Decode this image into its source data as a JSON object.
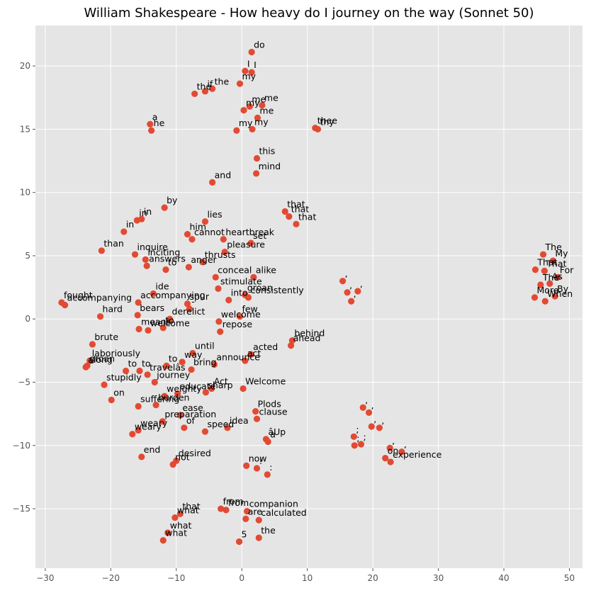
{
  "chart_data": {
    "type": "scatter",
    "title": "William Shakespeare - How heavy do I journey on the way (Sonnet 50)",
    "xlabel": "",
    "ylabel": "",
    "xlim": [
      -31.5,
      52
    ],
    "ylim": [
      -19.7,
      23.2
    ],
    "xticks": [
      -30,
      -20,
      -10,
      0,
      10,
      20,
      30,
      40,
      50
    ],
    "yticks": [
      -15,
      -10,
      -5,
      0,
      5,
      10,
      15,
      20
    ],
    "grid": true,
    "marker_color": "#E24A33",
    "background": "#E5E5E5",
    "grid_color": "#FFFFFF",
    "points": [
      {
        "label": "do",
        "x": 1.5,
        "y": 21.1
      },
      {
        "label": "I",
        "x": 0.5,
        "y": 19.6
      },
      {
        "label": "I",
        "x": 1.5,
        "y": 19.5
      },
      {
        "label": "the",
        "x": -4.5,
        "y": 18.2
      },
      {
        "label": "if",
        "x": -5.6,
        "y": 18.0
      },
      {
        "label": "the",
        "x": -7.2,
        "y": 17.8
      },
      {
        "label": "my",
        "x": -0.3,
        "y": 18.6
      },
      {
        "label": "me",
        "x": 1.2,
        "y": 16.8
      },
      {
        "label": "me",
        "x": 3.1,
        "y": 16.9
      },
      {
        "label": "my",
        "x": 0.3,
        "y": 16.5
      },
      {
        "label": "me",
        "x": 2.4,
        "y": 15.9
      },
      {
        "label": "my",
        "x": 1.6,
        "y": 15.0
      },
      {
        "label": "my",
        "x": -0.8,
        "y": 14.9
      },
      {
        "label": "thee",
        "x": 11.2,
        "y": 15.1
      },
      {
        "label": "thy",
        "x": 11.6,
        "y": 15.0
      },
      {
        "label": "a",
        "x": -14.0,
        "y": 15.4
      },
      {
        "label": "he",
        "x": -13.8,
        "y": 14.9
      },
      {
        "label": "this",
        "x": 2.3,
        "y": 12.7
      },
      {
        "label": "mind",
        "x": 2.2,
        "y": 11.5
      },
      {
        "label": "and",
        "x": -4.5,
        "y": 10.8
      },
      {
        "label": "by",
        "x": -11.8,
        "y": 8.8
      },
      {
        "label": "in",
        "x": -16.0,
        "y": 7.8
      },
      {
        "label": "in",
        "x": -15.3,
        "y": 7.9
      },
      {
        "label": "lies",
        "x": -5.6,
        "y": 7.7
      },
      {
        "label": "that",
        "x": 6.6,
        "y": 8.5
      },
      {
        "label": "that",
        "x": 7.2,
        "y": 8.1
      },
      {
        "label": "that",
        "x": 8.3,
        "y": 7.5
      },
      {
        "label": "him",
        "x": -8.3,
        "y": 6.7
      },
      {
        "label": "cannot",
        "x": -7.6,
        "y": 6.3
      },
      {
        "label": "in",
        "x": -18.0,
        "y": 6.9
      },
      {
        "label": "heartbreak",
        "x": -2.8,
        "y": 6.3
      },
      {
        "label": "than",
        "x": -21.4,
        "y": 5.4
      },
      {
        "label": "inquire",
        "x": -16.3,
        "y": 5.1
      },
      {
        "label": "pleasure",
        "x": -2.6,
        "y": 5.3
      },
      {
        "label": "set",
        "x": 1.4,
        "y": 6.0
      },
      {
        "label": "thrusts",
        "x": -6.0,
        "y": 4.5
      },
      {
        "label": "inciting",
        "x": -14.7,
        "y": 4.7
      },
      {
        "label": "answers",
        "x": -14.5,
        "y": 4.2
      },
      {
        "label": "to",
        "x": -11.6,
        "y": 3.9
      },
      {
        "label": "anger",
        "x": -8.1,
        "y": 4.1
      },
      {
        "label": "conceal",
        "x": -4.0,
        "y": 3.3
      },
      {
        "label": "alike",
        "x": 1.8,
        "y": 3.3
      },
      {
        "label": "stimulate",
        "x": -3.6,
        "y": 2.4
      },
      {
        "label": "groan",
        "x": 0.5,
        "y": 1.9
      },
      {
        "label": "ide",
        "x": -13.5,
        "y": 2.0
      },
      {
        "label": "accompanying",
        "x": -15.8,
        "y": 1.3
      },
      {
        "label": "fought",
        "x": -27.5,
        "y": 1.3
      },
      {
        "label": "accompanying",
        "x": -27.0,
        "y": 1.1
      },
      {
        "label": "into",
        "x": -2.0,
        "y": 1.5
      },
      {
        "label": "consistently",
        "x": 1.0,
        "y": 1.7
      },
      {
        "label": "spur",
        "x": -8.3,
        "y": 1.2
      },
      {
        "label": "-",
        "x": -8.0,
        "y": 0.8
      },
      {
        "label": "hard",
        "x": -21.6,
        "y": 0.2
      },
      {
        "label": "bears",
        "x": -15.9,
        "y": 0.3
      },
      {
        "label": "derelict",
        "x": -11.0,
        "y": 0.0
      },
      {
        "label": "few",
        "x": -0.3,
        "y": 0.2
      },
      {
        "label": "welcome",
        "x": -3.5,
        "y": -0.2
      },
      {
        "label": "means",
        "x": -15.7,
        "y": -0.8
      },
      {
        "label": "welcome",
        "x": -14.3,
        "y": -0.9
      },
      {
        "label": "to",
        "x": -12.0,
        "y": -0.7
      },
      {
        "label": "repose",
        "x": -3.3,
        "y": -1.0
      },
      {
        "label": "behind",
        "x": 7.7,
        "y": -1.7
      },
      {
        "label": "ahead",
        "x": 7.5,
        "y": -2.1
      },
      {
        "label": "brute",
        "x": -22.8,
        "y": -2.0
      },
      {
        "label": "laboriously",
        "x": -23.2,
        "y": -3.3
      },
      {
        "label": "way",
        "x": -9.1,
        "y": -3.4
      },
      {
        "label": "until",
        "x": -7.5,
        "y": -2.7
      },
      {
        "label": "acted",
        "x": 1.4,
        "y": -2.8
      },
      {
        "label": "act",
        "x": 0.5,
        "y": -3.3
      },
      {
        "label": "along",
        "x": -23.8,
        "y": -3.8
      },
      {
        "label": "groan",
        "x": -23.6,
        "y": -3.7
      },
      {
        "label": "to",
        "x": -17.7,
        "y": -4.1
      },
      {
        "label": "to",
        "x": -15.6,
        "y": -4.1
      },
      {
        "label": "travelâs",
        "x": -14.4,
        "y": -4.4
      },
      {
        "label": "to",
        "x": -11.5,
        "y": -3.7
      },
      {
        "label": "bring",
        "x": -7.7,
        "y": -4.0
      },
      {
        "label": "announce",
        "x": -4.2,
        "y": -3.6
      },
      {
        "label": "journey",
        "x": -13.3,
        "y": -5.0
      },
      {
        "label": "stupidly",
        "x": -21.0,
        "y": -5.2
      },
      {
        "label": "on",
        "x": -19.9,
        "y": -6.4
      },
      {
        "label": "educate",
        "x": -9.8,
        "y": -5.9
      },
      {
        "label": "Act",
        "x": -4.6,
        "y": -5.5
      },
      {
        "label": "weighty",
        "x": -11.8,
        "y": -6.1
      },
      {
        "label": "sharp",
        "x": -5.5,
        "y": -5.8
      },
      {
        "label": "Welcome",
        "x": 0.2,
        "y": -5.5
      },
      {
        "label": "suffering",
        "x": -15.8,
        "y": -6.9
      },
      {
        "label": "burden",
        "x": -13.1,
        "y": -6.8
      },
      {
        "label": "ease",
        "x": -9.4,
        "y": -7.6
      },
      {
        "label": "Plods",
        "x": 2.1,
        "y": -7.3
      },
      {
        "label": "clause",
        "x": 2.3,
        "y": -7.9
      },
      {
        "label": "preparation",
        "x": -12.1,
        "y": -8.1
      },
      {
        "label": "of",
        "x": -8.8,
        "y": -8.6
      },
      {
        "label": "speed",
        "x": -5.6,
        "y": -8.9
      },
      {
        "label": "âUp",
        "x": 3.7,
        "y": -9.5
      },
      {
        "label": "idea",
        "x": -2.2,
        "y": -8.6
      },
      {
        "label": "weary",
        "x": -16.7,
        "y": -9.1
      },
      {
        "label": "weary",
        "x": -15.8,
        "y": -8.8
      },
      {
        "label": "a",
        "x": 4.0,
        "y": -9.7
      },
      {
        "label": "end",
        "x": -15.3,
        "y": -10.9
      },
      {
        "label": "desired",
        "x": -10.0,
        "y": -11.2
      },
      {
        "label": "not",
        "x": -10.5,
        "y": -11.5
      },
      {
        "label": "now",
        "x": 0.7,
        "y": -11.6
      },
      {
        "label": "!",
        "x": 2.3,
        "y": -11.8
      },
      {
        "label": ":",
        "x": 3.9,
        "y": -12.3
      },
      {
        "label": "that",
        "x": -9.4,
        "y": -15.4
      },
      {
        "label": "what",
        "x": -10.2,
        "y": -15.7
      },
      {
        "label": "from",
        "x": -3.2,
        "y": -15.0
      },
      {
        "label": "from",
        "x": -2.4,
        "y": -15.1
      },
      {
        "label": "companion",
        "x": 0.8,
        "y": -15.2
      },
      {
        "label": "are",
        "x": 0.6,
        "y": -15.8
      },
      {
        "label": "what",
        "x": -11.3,
        "y": -16.9
      },
      {
        "label": "what",
        "x": -12.0,
        "y": -17.5
      },
      {
        "label": "calculated",
        "x": 2.6,
        "y": -15.9
      },
      {
        "label": "the",
        "x": 2.6,
        "y": -17.3
      },
      {
        "label": "5",
        "x": -0.4,
        "y": -17.6
      },
      {
        "label": ",",
        "x": 15.4,
        "y": 3.0
      },
      {
        "label": ",",
        "x": 16.1,
        "y": 2.1
      },
      {
        "label": ",",
        "x": 17.7,
        "y": 2.2
      },
      {
        "label": ",",
        "x": 16.7,
        "y": 1.4
      },
      {
        "label": ",",
        "x": 18.5,
        "y": -7.0
      },
      {
        "label": ",",
        "x": 19.4,
        "y": -7.4
      },
      {
        "label": ",",
        "x": 19.8,
        "y": -8.5
      },
      {
        "label": ",",
        "x": 21.0,
        "y": -8.6
      },
      {
        "label": ";",
        "x": 17.1,
        "y": -9.3
      },
      {
        "label": ";",
        "x": 17.2,
        "y": -10.0
      },
      {
        "label": ";",
        "x": 18.2,
        "y": -9.9
      },
      {
        "label": ",",
        "x": 22.6,
        "y": -10.2
      },
      {
        "label": ",",
        "x": 24.4,
        "y": -10.5
      },
      {
        "label": "on",
        "x": 21.9,
        "y": -11.0
      },
      {
        "label": "experience",
        "x": 22.7,
        "y": -11.3
      },
      {
        "label": "The",
        "x": 46.0,
        "y": 5.1
      },
      {
        "label": "My",
        "x": 47.5,
        "y": 4.6
      },
      {
        "label": "That",
        "x": 44.8,
        "y": 3.9
      },
      {
        "label": "That",
        "x": 46.2,
        "y": 3.8
      },
      {
        "label": "For",
        "x": 48.2,
        "y": 3.3
      },
      {
        "label": "The",
        "x": 45.6,
        "y": 2.7
      },
      {
        "label": "As",
        "x": 47.0,
        "y": 2.8
      },
      {
        "label": "By",
        "x": 47.8,
        "y": 1.8
      },
      {
        "label": "More",
        "x": 44.7,
        "y": 1.7
      },
      {
        "label": "When",
        "x": 46.3,
        "y": 1.4
      }
    ]
  }
}
